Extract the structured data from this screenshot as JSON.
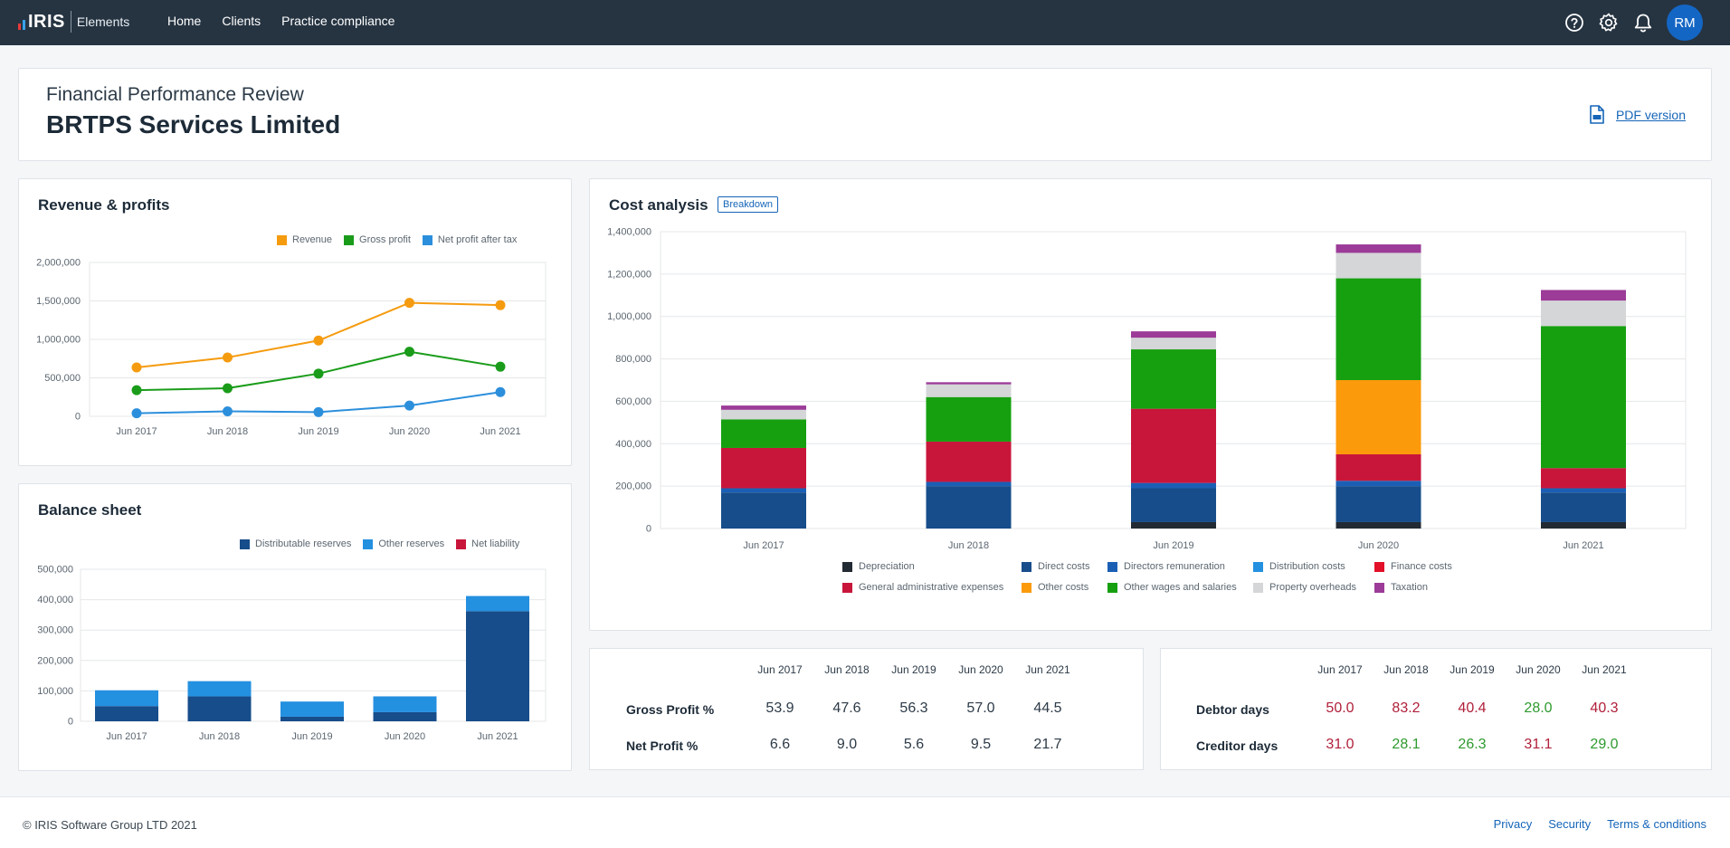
{
  "app": {
    "logo_text": "IRIS",
    "logo_sub": "Elements",
    "nav": [
      "Home",
      "Clients",
      "Practice compliance"
    ],
    "user_initials": "RM"
  },
  "header": {
    "subtitle": "Financial Performance Review",
    "company": "BRTPS Services Limited",
    "pdf_label": "PDF version"
  },
  "revenue_profits": {
    "title": "Revenue & profits",
    "legend": [
      "Revenue",
      "Gross profit",
      "Net profit after tax"
    ]
  },
  "balance_sheet": {
    "title": "Balance sheet",
    "legend": [
      "Distributable reserves",
      "Other reserves",
      "Net liability"
    ]
  },
  "cost_analysis": {
    "title": "Cost analysis",
    "badge": "Breakdown",
    "legend": [
      "Depreciation",
      "Direct costs",
      "Directors remuneration",
      "Distribution costs",
      "Finance costs",
      "General administrative expenses",
      "Other costs",
      "Other wages and salaries",
      "Property overheads",
      "Taxation"
    ]
  },
  "profit_table": {
    "columns": [
      "Jun 2017",
      "Jun 2018",
      "Jun 2019",
      "Jun 2020",
      "Jun 2021"
    ],
    "rows": [
      {
        "label": "Gross Profit %",
        "values": [
          "53.9",
          "47.6",
          "56.3",
          "57.0",
          "44.5"
        ]
      },
      {
        "label": "Net Profit %",
        "values": [
          "6.6",
          "9.0",
          "5.6",
          "9.5",
          "21.7"
        ]
      }
    ]
  },
  "days_table": {
    "columns": [
      "Jun 2017",
      "Jun 2018",
      "Jun 2019",
      "Jun 2020",
      "Jun 2021"
    ],
    "rows": [
      {
        "label": "Debtor days",
        "values": [
          "50.0",
          "83.2",
          "40.4",
          "28.0",
          "40.3"
        ],
        "colors": [
          "#b0203a",
          "#b0203a",
          "#b0203a",
          "#2e9a2e",
          "#b0203a"
        ]
      },
      {
        "label": "Creditor days",
        "values": [
          "31.0",
          "28.1",
          "26.3",
          "31.1",
          "29.0"
        ],
        "colors": [
          "#b0203a",
          "#2e9a2e",
          "#2e9a2e",
          "#b0203a",
          "#2e9a2e"
        ]
      }
    ]
  },
  "footer": {
    "copyright": "© IRIS Software Group LTD 2021",
    "links": [
      "Privacy",
      "Security",
      "Terms & conditions"
    ]
  },
  "chart_data": [
    {
      "id": "revenue_profits",
      "type": "line",
      "categories": [
        "Jun 2017",
        "Jun 2018",
        "Jun 2019",
        "Jun 2020",
        "Jun 2021"
      ],
      "yticks": [
        "0",
        "500,000",
        "1,000,000",
        "1,500,000",
        "2,000,000"
      ],
      "ylim": [
        0,
        2000000
      ],
      "grid": true,
      "legend_position": "top-right",
      "series": [
        {
          "name": "Revenue",
          "color": "#f59b0f",
          "values": [
            635000,
            765000,
            985000,
            1475000,
            1445000
          ]
        },
        {
          "name": "Gross profit",
          "color": "#1a9c1a",
          "values": [
            340000,
            365000,
            555000,
            840000,
            645000
          ]
        },
        {
          "name": "Net profit after tax",
          "color": "#2c8fdc",
          "values": [
            40000,
            65000,
            55000,
            140000,
            315000
          ]
        }
      ]
    },
    {
      "id": "balance_sheet",
      "type": "bar",
      "stacked": true,
      "categories": [
        "Jun 2017",
        "Jun 2018",
        "Jun 2019",
        "Jun 2020",
        "Jun 2021"
      ],
      "yticks": [
        "0",
        "100,000",
        "200,000",
        "300,000",
        "400,000",
        "500,000"
      ],
      "ylim": [
        0,
        500000
      ],
      "grid": true,
      "legend_position": "top-right",
      "series": [
        {
          "name": "Distributable reserves",
          "color": "#174d8a",
          "values": [
            50000,
            82000,
            15000,
            30000,
            362000
          ]
        },
        {
          "name": "Other reserves",
          "color": "#2490e0",
          "values": [
            52000,
            50000,
            50000,
            52000,
            50000
          ]
        },
        {
          "name": "Net liability",
          "color": "#c8163b",
          "values": [
            0,
            0,
            0,
            0,
            0
          ]
        }
      ]
    },
    {
      "id": "cost_analysis",
      "type": "bar",
      "stacked": true,
      "categories": [
        "Jun 2017",
        "Jun 2018",
        "Jun 2019",
        "Jun 2020",
        "Jun 2021"
      ],
      "yticks": [
        "0",
        "200,000",
        "400,000",
        "600,000",
        "800,000",
        "1,000,000",
        "1,200,000",
        "1,400,000"
      ],
      "ylim": [
        0,
        1400000
      ],
      "grid": true,
      "legend_position": "bottom",
      "series": [
        {
          "name": "Depreciation",
          "color": "#222a33",
          "values": [
            0,
            0,
            30000,
            30000,
            30000
          ]
        },
        {
          "name": "Direct costs",
          "color": "#174d8a",
          "values": [
            170000,
            200000,
            160000,
            170000,
            140000
          ]
        },
        {
          "name": "Directors remuneration",
          "color": "#1b5fb5",
          "values": [
            20000,
            20000,
            25000,
            25000,
            20000
          ]
        },
        {
          "name": "Distribution costs",
          "color": "#2490e0",
          "values": [
            0,
            0,
            0,
            0,
            0
          ]
        },
        {
          "name": "Finance costs",
          "color": "#e3102a",
          "values": [
            0,
            0,
            0,
            0,
            0
          ]
        },
        {
          "name": "General administrative expenses",
          "color": "#c8163b",
          "values": [
            190000,
            190000,
            350000,
            125000,
            95000
          ]
        },
        {
          "name": "Other costs",
          "color": "#fb9a0b",
          "values": [
            0,
            0,
            0,
            350000,
            0
          ]
        },
        {
          "name": "Other wages and salaries",
          "color": "#16a010",
          "values": [
            135000,
            210000,
            280000,
            480000,
            670000
          ]
        },
        {
          "name": "Property overheads",
          "color": "#d4d6d8",
          "values": [
            45000,
            60000,
            55000,
            120000,
            120000
          ]
        },
        {
          "name": "Taxation",
          "color": "#9c3b98",
          "values": [
            20000,
            10000,
            30000,
            40000,
            50000
          ]
        }
      ]
    }
  ]
}
